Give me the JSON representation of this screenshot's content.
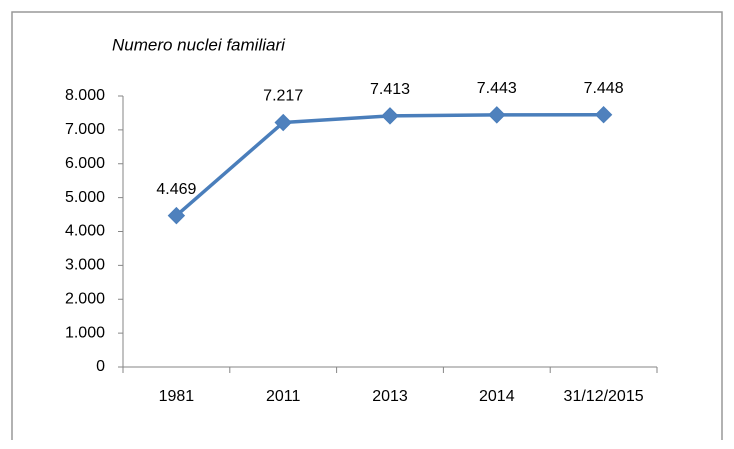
{
  "chart_data": {
    "type": "line",
    "title": "Numero nuclei familiari",
    "categories": [
      "1981",
      "2011",
      "2013",
      "2014",
      "31/12/2015"
    ],
    "series": [
      {
        "name": "Numero nuclei familiari",
        "color": "#4a7ebb",
        "values": [
          4469,
          7217,
          7413,
          7443,
          7448
        ],
        "value_labels": [
          "4.469",
          "7.217",
          "7.413",
          "7.443",
          "7.448"
        ]
      }
    ],
    "ylim": [
      0,
      8000
    ],
    "yticks": [
      0,
      {
        "value": 1000,
        "label": "1.000"
      },
      {
        "value": 2000,
        "label": "2.000"
      },
      {
        "value": 3000,
        "label": "3.000"
      },
      {
        "value": 4000,
        "label": "4.000"
      },
      {
        "value": 5000,
        "label": "5.000"
      },
      {
        "value": 6000,
        "label": "6.000"
      },
      {
        "value": 7000,
        "label": "7.000"
      },
      {
        "value": 8000,
        "label": "8.000"
      }
    ],
    "grid": false
  }
}
